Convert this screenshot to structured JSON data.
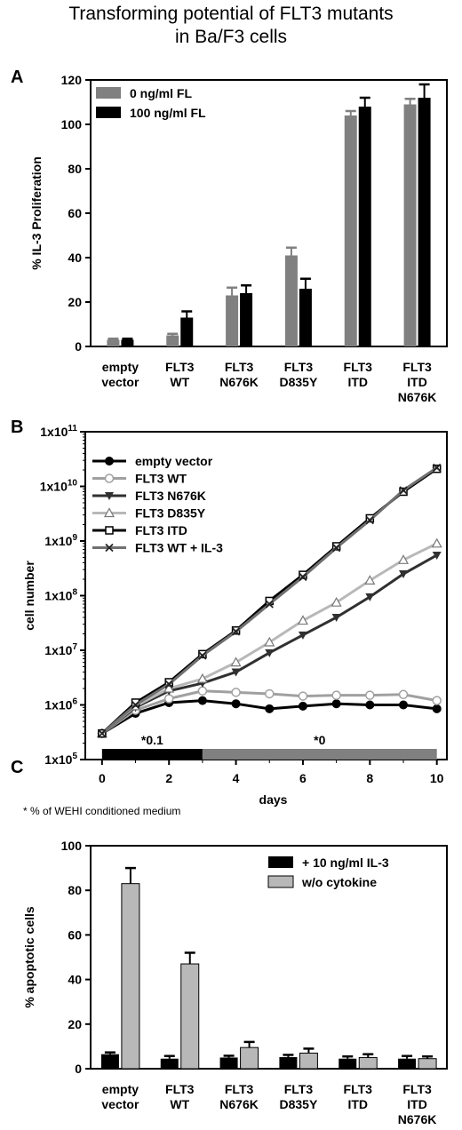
{
  "figure": {
    "title_line1": "Transforming potential of FLT3 mutants",
    "title_line2": "in Ba/F3 cells",
    "panels": [
      "A",
      "B",
      "C"
    ],
    "footnote": "* % of WEHI conditioned medium"
  },
  "colors": {
    "gray": "#808080",
    "light_gray": "#b8b8b8",
    "black": "#000000"
  },
  "chart_data": [
    {
      "type": "bar",
      "title": "",
      "ylabel": "% IL-3 Proliferation",
      "xlabel": "",
      "ylim": [
        0,
        120
      ],
      "yticks": [
        0,
        20,
        40,
        60,
        80,
        100,
        120
      ],
      "categories": [
        [
          "empty",
          "vector"
        ],
        [
          "FLT3",
          "WT"
        ],
        [
          "FLT3",
          "N676K"
        ],
        [
          "FLT3",
          "D835Y"
        ],
        [
          "FLT3",
          "ITD"
        ],
        [
          "FLT3",
          "ITD",
          "N676K"
        ]
      ],
      "legend": "top-left",
      "series": [
        {
          "name": "0 ng/ml FL",
          "color": "#808080",
          "values": [
            3,
            5,
            23,
            41,
            104,
            109
          ],
          "errors": [
            0.5,
            0.7,
            3.5,
            3.5,
            2,
            2.5
          ]
        },
        {
          "name": "100 ng/ml FL",
          "color": "#000000",
          "values": [
            3,
            13,
            24,
            26,
            108,
            112
          ],
          "errors": [
            0.5,
            2.8,
            3.5,
            4.5,
            4,
            6
          ]
        }
      ]
    },
    {
      "type": "line",
      "title": "",
      "ylabel": "cell number",
      "xlabel": "days",
      "yscale": "log",
      "ylim": [
        100000,
        100000000000
      ],
      "yticks": [
        "1x10^5",
        "1x10^6",
        "1x10^7",
        "1x10^8",
        "1x10^9",
        "1x10^10",
        "1x10^11"
      ],
      "xlim": [
        -0.5,
        10.3
      ],
      "xticks": [
        0,
        2,
        4,
        6,
        8,
        10
      ],
      "legend": "top-left",
      "x": [
        0,
        1,
        2,
        3,
        4,
        5,
        6,
        7,
        8,
        9,
        10
      ],
      "series": [
        {
          "name": "empty vector",
          "marker": "filled-circle",
          "color": "#000000",
          "values": [
            300000,
            700000,
            1100000,
            1200000,
            1050000,
            850000,
            950000,
            1050000,
            1000000,
            1000000,
            850000
          ]
        },
        {
          "name": "FLT3 WT",
          "marker": "open-circle",
          "color": "#a0a0a0",
          "values": [
            300000,
            800000,
            1300000,
            1800000,
            1700000,
            1600000,
            1450000,
            1500000,
            1500000,
            1550000,
            1200000
          ]
        },
        {
          "name": "FLT3 N676K",
          "marker": "filled-triangle-down",
          "color": "#303030",
          "values": [
            300000,
            900000,
            1800000,
            2500000,
            4000000,
            9000000,
            19000000,
            40000000,
            95000000,
            250000000,
            550000000
          ]
        },
        {
          "name": "FLT3 D835Y",
          "marker": "open-triangle",
          "color": "#b8b8b8",
          "values": [
            300000,
            950000,
            2000000,
            3000000,
            6000000,
            14000000,
            35000000,
            75000000,
            190000000,
            450000000,
            900000000
          ]
        },
        {
          "name": "FLT3 ITD",
          "marker": "open-square",
          "color": "#000000",
          "values": [
            300000,
            1100000,
            2600000,
            8500000,
            23000000,
            80000000,
            240000000,
            800000000,
            2600000000,
            8000000000,
            21000000000
          ]
        },
        {
          "name": "FLT3 WT + IL-3",
          "marker": "x",
          "color": "#707070",
          "values": [
            300000,
            1000000,
            2400000,
            8000000,
            22000000,
            70000000,
            220000000,
            750000000,
            2400000000,
            8500000000,
            22000000000
          ]
        }
      ],
      "medium_bar": [
        {
          "label": "*0.1",
          "from": 0,
          "to": 3,
          "color": "#000000"
        },
        {
          "label": "*0",
          "from": 3,
          "to": 10,
          "color": "#808080"
        }
      ]
    },
    {
      "type": "bar",
      "title": "",
      "ylabel": "% apoptotic cells",
      "xlabel": "",
      "ylim": [
        0,
        100
      ],
      "yticks": [
        0,
        20,
        40,
        60,
        80,
        100
      ],
      "categories": [
        [
          "empty",
          "vector"
        ],
        [
          "FLT3",
          "WT"
        ],
        [
          "FLT3",
          "N676K"
        ],
        [
          "FLT3",
          "D835Y"
        ],
        [
          "FLT3",
          "ITD"
        ],
        [
          "FLT3",
          "ITD",
          "N676K"
        ]
      ],
      "legend": "top-right",
      "series": [
        {
          "name": "+ 10 ng/ml IL-3",
          "color": "#000000",
          "values": [
            6.5,
            4.5,
            5,
            5.2,
            4.5,
            4.5
          ],
          "errors": [
            0.8,
            1.2,
            0.8,
            1,
            1,
            1.2
          ]
        },
        {
          "name": "w/o cytokine",
          "color": "#b8b8b8",
          "values": [
            83,
            47,
            9.5,
            7,
            5,
            4.5
          ],
          "errors": [
            7,
            5,
            2.5,
            2,
            1.5,
            1
          ]
        }
      ]
    }
  ]
}
